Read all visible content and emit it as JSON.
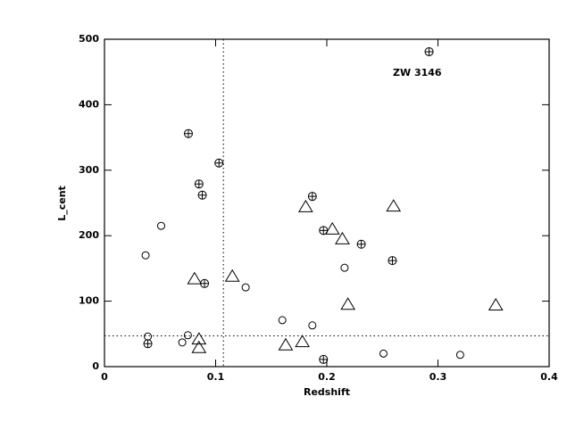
{
  "chart_data": {
    "type": "scatter",
    "xlabel": "Redshift",
    "ylabel": "L_cent",
    "annotation": "ZW 3146",
    "xlim": [
      0,
      0.4
    ],
    "xticks": [
      0,
      0.1,
      0.2,
      0.3,
      0.4
    ],
    "ylim": [
      0,
      500
    ],
    "yticks": [
      0,
      100,
      200,
      300,
      400,
      500
    ],
    "color": "#000000",
    "reference_lines": {
      "x": 0.107,
      "y": 47
    },
    "series": [
      {
        "marker": "circle",
        "x": [
          0.037,
          0.051,
          0.039,
          0.075,
          0.07,
          0.127,
          0.16,
          0.187,
          0.216,
          0.251,
          0.32
        ],
        "values": [
          170,
          215,
          46,
          48,
          37,
          121,
          71,
          63,
          151,
          20,
          18
        ]
      },
      {
        "marker": "circle-plus",
        "x": [
          0.0755,
          0.103,
          0.085,
          0.088,
          0.09,
          0.039,
          0.187,
          0.197,
          0.231,
          0.259,
          0.197,
          0.292
        ],
        "values": [
          356,
          311,
          279,
          262,
          127,
          35,
          260,
          208,
          187,
          162,
          11,
          481
        ]
      },
      {
        "marker": "triangle",
        "x": [
          0.081,
          0.085,
          0.085,
          0.115,
          0.163,
          0.178,
          0.181,
          0.205,
          0.214,
          0.219,
          0.26,
          0.352
        ],
        "values": [
          134,
          42,
          29,
          138,
          33,
          38,
          244,
          210,
          195,
          95,
          245,
          94
        ]
      }
    ]
  }
}
